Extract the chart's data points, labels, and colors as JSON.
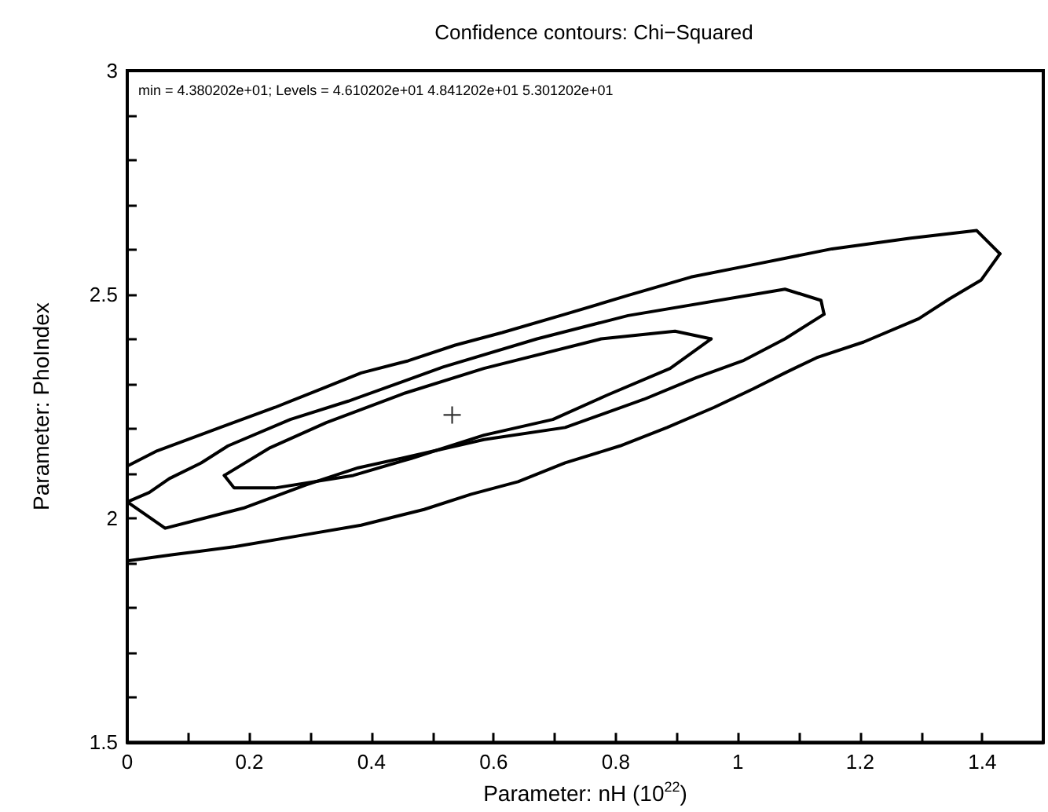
{
  "chart_data": {
    "type": "line",
    "title": "Confidence contours: Chi−Squared",
    "xlabel": "Parameter: nH (10$^{22}$)",
    "ylabel": "Parameter: PhoIndex",
    "annotations": [
      "min = 4.380202e+01; Levels = 4.610202e+01 4.841202e+01 5.301202e+01"
    ],
    "xlim": [
      0,
      1.5
    ],
    "ylim": [
      1.5,
      3
    ],
    "xticks": [
      0,
      {
        "value": 0.1,
        "label": null
      },
      0.2,
      {
        "value": 0.3,
        "label": null
      },
      0.4,
      {
        "value": 0.5,
        "label": null
      },
      0.6,
      {
        "value": 0.7,
        "label": null
      },
      0.8,
      {
        "value": 0.9,
        "label": null
      },
      1,
      {
        "value": 1.1,
        "label": null
      },
      1.2,
      {
        "value": 1.3,
        "label": null
      },
      1.4,
      {
        "value": 1.5,
        "label": null
      }
    ],
    "yticks": [
      1.5,
      {
        "value": 1.6,
        "label": null
      },
      {
        "value": 1.7,
        "label": null
      },
      {
        "value": 1.8,
        "label": null
      },
      {
        "value": 1.9,
        "label": null
      },
      2,
      {
        "value": 2.1,
        "label": null
      },
      {
        "value": 2.2,
        "label": null
      },
      {
        "value": 2.3,
        "label": null
      },
      {
        "value": 2.4,
        "label": null
      },
      2.5,
      {
        "value": 2.6,
        "label": null
      },
      {
        "value": 2.7,
        "label": null
      },
      {
        "value": 2.8,
        "label": null
      },
      {
        "value": 2.9,
        "label": null
      },
      3
    ],
    "grid": false,
    "line_style": "solid",
    "marker": "none",
    "series": [
      {
        "color": "#000000",
        "x": [
          0,
          0.049,
          0.152,
          0.242,
          0.319,
          0.383,
          0.46,
          0.537,
          0.614,
          0.717,
          0.82,
          0.923,
          1.026,
          1.154,
          1.283,
          1.391,
          1.429
        ],
        "values": [
          2.117,
          2.151,
          2.203,
          2.248,
          2.29,
          2.325,
          2.352,
          2.387,
          2.415,
          2.456,
          2.498,
          2.539,
          2.567,
          2.602,
          2.626,
          2.643,
          2.591
        ]
      },
      {
        "color": "#000000",
        "x": [
          0,
          0.075,
          0.177,
          0.28,
          0.383,
          0.486,
          0.563,
          0.64,
          0.717,
          0.807,
          0.884,
          0.961,
          1.026,
          1.077,
          1.129,
          1.206,
          1.296,
          1.347,
          1.398,
          1.429
        ],
        "values": [
          1.905,
          1.919,
          1.937,
          1.961,
          1.985,
          2.02,
          2.054,
          2.082,
          2.124,
          2.162,
          2.203,
          2.248,
          2.29,
          2.325,
          2.359,
          2.394,
          2.446,
          2.491,
          2.532,
          2.591
        ]
      },
      {
        "color": "#000000",
        "x": [
          0,
          0.036,
          0.069,
          0.121,
          0.165,
          0.267,
          0.362,
          0.517,
          0.671,
          0.82,
          1.077,
          1.136,
          1.141
        ],
        "values": [
          2.037,
          2.058,
          2.089,
          2.124,
          2.162,
          2.221,
          2.262,
          2.338,
          2.401,
          2.453,
          2.512,
          2.487,
          2.456
        ]
      },
      {
        "color": "#000000",
        "x": [
          0,
          0.062,
          0.19,
          0.293,
          0.378,
          0.481,
          0.584,
          0.717,
          0.846,
          0.931,
          1.008,
          1.077,
          1.141
        ],
        "values": [
          2.037,
          1.978,
          2.023,
          2.075,
          2.113,
          2.144,
          2.176,
          2.203,
          2.266,
          2.314,
          2.352,
          2.401,
          2.456
        ]
      },
      {
        "color": "#000000",
        "x": [
          0.159,
          0.234,
          0.326,
          0.455,
          0.584,
          0.776,
          0.897,
          0.956
        ],
        "values": [
          2.096,
          2.158,
          2.214,
          2.28,
          2.335,
          2.401,
          2.418,
          2.401
        ]
      },
      {
        "color": "#000000",
        "x": [
          0.159,
          0.175,
          0.242,
          0.37,
          0.465,
          0.584,
          0.697,
          0.787,
          0.889,
          0.956
        ],
        "values": [
          2.096,
          2.068,
          2.068,
          2.096,
          2.134,
          2.186,
          2.221,
          2.276,
          2.335,
          2.401
        ]
      },
      {
        "type": "scatter",
        "marker": "cross",
        "color": "#000000",
        "x": [
          0.532
        ],
        "values": [
          2.231
        ]
      }
    ]
  }
}
